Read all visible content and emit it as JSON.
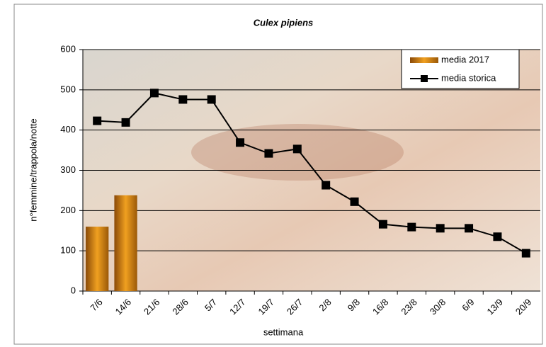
{
  "chart_data": {
    "type": "bar-line",
    "title": "Culex pipiens",
    "x_label": "settimana",
    "y_label": "n°femmine/trappola/notte",
    "categories": [
      "7/6",
      "14/6",
      "21/6",
      "28/6",
      "5/7",
      "12/7",
      "19/7",
      "26/7",
      "2/8",
      "9/8",
      "16/8",
      "23/8",
      "30/8",
      "6/9",
      "13/9",
      "20/9"
    ],
    "series": [
      {
        "name": "media 2017",
        "type": "bar",
        "color": "#e08a10",
        "values": [
          160,
          238,
          null,
          null,
          null,
          null,
          null,
          null,
          null,
          null,
          null,
          null,
          null,
          null,
          null,
          null
        ]
      },
      {
        "name": "media storica",
        "type": "line",
        "color": "#000000",
        "values": [
          423,
          419,
          492,
          476,
          476,
          369,
          342,
          353,
          263,
          222,
          166,
          159,
          156,
          156,
          135,
          94
        ]
      }
    ],
    "ylim": [
      0,
      600
    ],
    "yticks": [
      0,
      100,
      200,
      300,
      400,
      500,
      600
    ],
    "grid": true,
    "legend": "top-right"
  }
}
